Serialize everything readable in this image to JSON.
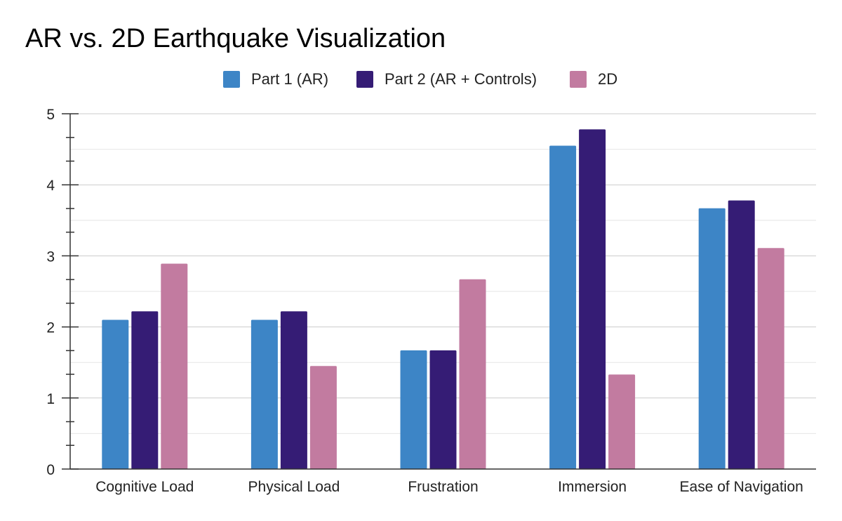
{
  "chart_data": {
    "type": "bar",
    "title": "AR vs. 2D Earthquake Visualization",
    "xlabel": "",
    "ylabel": "",
    "categories": [
      "Cognitive Load",
      "Physical Load",
      "Frustration",
      "Immersion",
      "Ease of Navigation"
    ],
    "series": [
      {
        "name": "Part 1 (AR)",
        "color": "#3d85c6",
        "values": [
          2.1,
          2.1,
          1.67,
          4.55,
          3.67
        ]
      },
      {
        "name": "Part 2 (AR + Controls)",
        "color": "#351c75",
        "values": [
          2.22,
          2.22,
          1.67,
          4.78,
          3.78
        ]
      },
      {
        "name": "2D",
        "color": "#c27ba0",
        "values": [
          2.89,
          1.45,
          2.67,
          1.33,
          3.11
        ]
      }
    ],
    "ylim": [
      0,
      5
    ],
    "yticks": [
      "0",
      "1",
      "2",
      "3",
      "4",
      "5"
    ],
    "grid": true,
    "legend_position": "top"
  }
}
